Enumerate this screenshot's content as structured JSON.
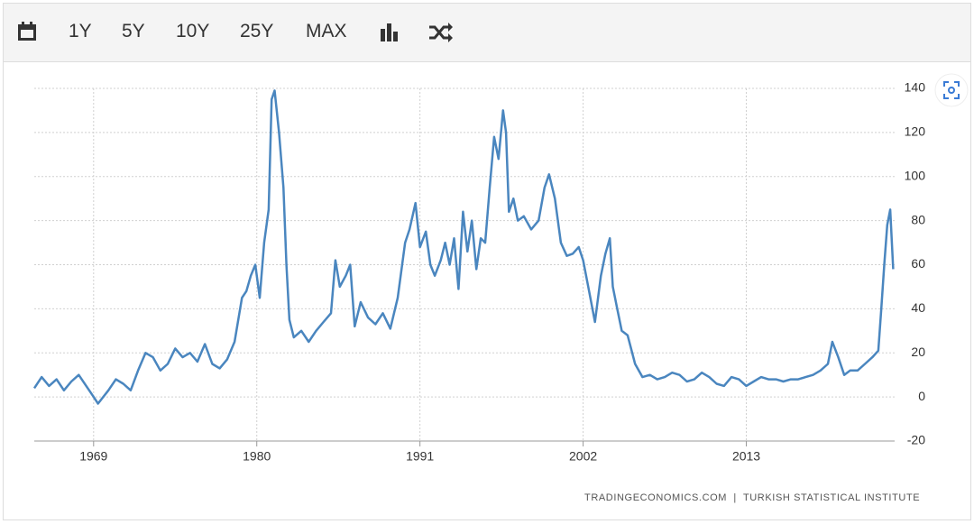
{
  "toolbar": {
    "buttons": [
      "1Y",
      "5Y",
      "10Y",
      "25Y",
      "MAX"
    ]
  },
  "footer": {
    "source": "TRADINGECONOMICS.COM  |  TURKISH STATISTICAL INSTITUTE"
  },
  "chart_data": {
    "type": "line",
    "color": "#4a86bf",
    "grid": true,
    "x": [
      1965.0,
      1965.5,
      1966,
      1966.5,
      1967,
      1967.5,
      1968,
      1968.5,
      1969,
      1969.3,
      1970,
      1970.5,
      1971,
      1971.5,
      1972,
      1972.5,
      1973,
      1973.5,
      1974,
      1974.5,
      1975,
      1975.5,
      1976,
      1976.5,
      1977,
      1977.5,
      1978,
      1978.5,
      1979,
      1979.3,
      1979.6,
      1979.9,
      1980.2,
      1980.5,
      1980.8,
      1981.0,
      1981.2,
      1981.5,
      1981.8,
      1982.0,
      1982.2,
      1982.5,
      1983,
      1983.5,
      1984,
      1984.5,
      1985,
      1985.3,
      1985.6,
      1986,
      1986.3,
      1986.6,
      1987,
      1987.5,
      1988,
      1988.5,
      1989,
      1989.5,
      1990,
      1990.3,
      1990.7,
      1991,
      1991.4,
      1991.7,
      1992,
      1992.4,
      1992.7,
      1993,
      1993.3,
      1993.6,
      1993.9,
      1994.2,
      1994.5,
      1994.8,
      1995.1,
      1995.4,
      1995.7,
      1996.0,
      1996.3,
      1996.6,
      1996.8,
      1997.0,
      1997.3,
      1997.6,
      1998.0,
      1998.5,
      1999,
      1999.4,
      1999.7,
      2000.1,
      2000.5,
      2000.9,
      2001.3,
      2001.7,
      2002.0,
      2002.4,
      2002.8,
      2003.2,
      2003.5,
      2003.8,
      2004.0,
      2004.3,
      2004.6,
      2005,
      2005.5,
      2006,
      2006.5,
      2007,
      2007.5,
      2008,
      2008.5,
      2009,
      2009.5,
      2010,
      2010.5,
      2011,
      2011.5,
      2012,
      2012.5,
      2013,
      2013.5,
      2014,
      2014.5,
      2015,
      2015.5,
      2016,
      2016.5,
      2017,
      2017.5,
      2018,
      2018.5,
      2018.8,
      2019.2,
      2019.6,
      2020,
      2020.5,
      2021,
      2021.5,
      2021.9,
      2022.1,
      2022.3,
      2022.5,
      2022.7,
      2022.9
    ],
    "values": [
      4,
      9,
      5,
      8,
      3,
      7,
      10,
      5,
      0,
      -3,
      3,
      8,
      6,
      3,
      12,
      20,
      18,
      12,
      15,
      22,
      18,
      20,
      16,
      24,
      15,
      13,
      17,
      25,
      45,
      48,
      55,
      60,
      45,
      70,
      85,
      135,
      139,
      120,
      95,
      60,
      35,
      27,
      30,
      25,
      30,
      34,
      38,
      62,
      50,
      55,
      60,
      32,
      43,
      36,
      33,
      38,
      31,
      45,
      70,
      76,
      88,
      68,
      75,
      60,
      55,
      62,
      70,
      60,
      72,
      49,
      84,
      66,
      80,
      58,
      72,
      70,
      95,
      118,
      108,
      130,
      120,
      84,
      90,
      80,
      82,
      76,
      80,
      95,
      101,
      90,
      70,
      64,
      65,
      68,
      62,
      48,
      34,
      55,
      65,
      72,
      50,
      40,
      30,
      28,
      15,
      9,
      10,
      8,
      9,
      11,
      10,
      7,
      8,
      11,
      9,
      6,
      5,
      9,
      8,
      5,
      7,
      9,
      8,
      8,
      7,
      8,
      8,
      9,
      10,
      12,
      15,
      25,
      18,
      10,
      12,
      12,
      15,
      18,
      21,
      40,
      60,
      78,
      85,
      58
    ],
    "xlim": [
      1965,
      2023
    ],
    "xticks": [
      1969,
      1980,
      1991,
      2002,
      2013
    ],
    "ylim": [
      -20,
      140
    ],
    "yticks": [
      -20,
      0,
      20,
      40,
      60,
      80,
      100,
      120,
      140
    ]
  }
}
